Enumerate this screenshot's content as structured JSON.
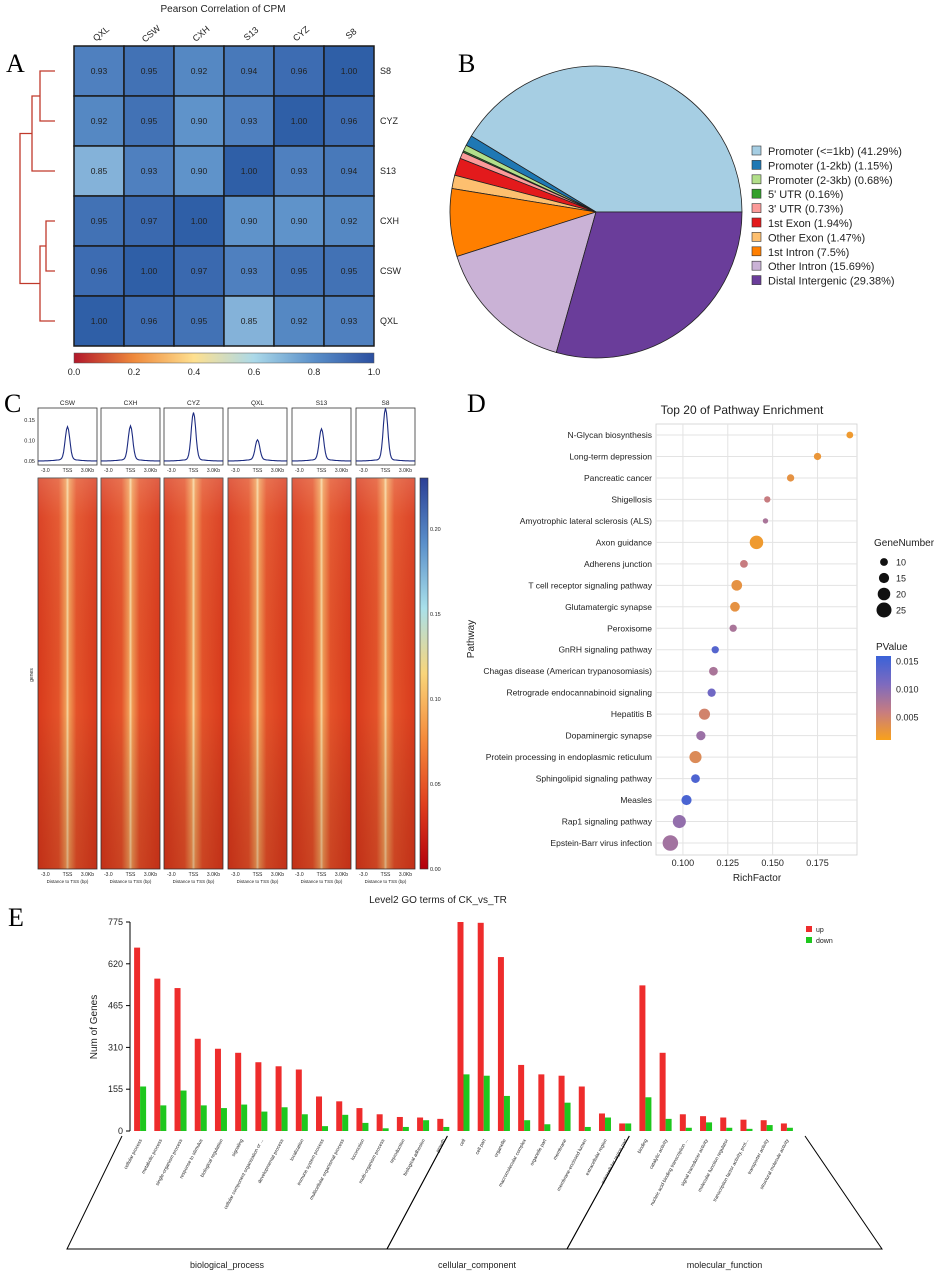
{
  "panel_letters": {
    "a": "A",
    "b": "B",
    "c": "C",
    "d": "D",
    "e": "E"
  },
  "chart_data": [
    {
      "panel": "A",
      "type": "heatmap",
      "title": "Pearson Correlation of CPM",
      "columns": [
        "QXL",
        "CSW",
        "CXH",
        "S13",
        "CYZ",
        "S8"
      ],
      "rows": [
        "S8",
        "CYZ",
        "S13",
        "CXH",
        "CSW",
        "QXL"
      ],
      "values": [
        [
          0.93,
          0.95,
          0.92,
          0.94,
          0.96,
          1.0
        ],
        [
          0.92,
          0.95,
          0.9,
          0.93,
          1.0,
          0.96
        ],
        [
          0.85,
          0.93,
          0.9,
          1.0,
          0.93,
          0.94
        ],
        [
          0.95,
          0.97,
          1.0,
          0.9,
          0.9,
          0.92
        ],
        [
          0.96,
          1.0,
          0.97,
          0.93,
          0.95,
          0.95
        ],
        [
          1.0,
          0.96,
          0.95,
          0.85,
          0.92,
          0.93
        ]
      ],
      "value_labels": [
        [
          "0.93",
          "0.95",
          "0.92",
          "0.94",
          "0.96",
          "1.00"
        ],
        [
          "0.92",
          "0.95",
          "0.90",
          "0.93",
          "1.00",
          "0.96"
        ],
        [
          "0.85",
          "0.93",
          "0.90",
          "1.00",
          "0.93",
          "0.94"
        ],
        [
          "0.95",
          "0.97",
          "1.00",
          "0.90",
          "0.90",
          "0.92"
        ],
        [
          "0.96",
          "1.00",
          "0.97",
          "0.93",
          "0.95",
          "0.95"
        ],
        [
          "1.00",
          "0.96",
          "0.95",
          "0.85",
          "0.92",
          "0.93"
        ]
      ],
      "colorbar": {
        "range": [
          0.0,
          1.0
        ],
        "ticks": [
          "0.0",
          "0.2",
          "0.4",
          "0.6",
          "0.8",
          "1.0"
        ],
        "colors": [
          "#b2182b",
          "#ef8a3c",
          "#fee090",
          "#abd9e9",
          "#5a8fc9",
          "#2b4fa0"
        ]
      },
      "dendrogram": "hierarchical clustering of rows (S8, CYZ, S13 | CXH, CSW, QXL)",
      "line_color": "#c0392b"
    },
    {
      "panel": "B",
      "type": "pie",
      "categories": [
        "Promoter (<=1kb)",
        "Promoter (1-2kb)",
        "Promoter (2-3kb)",
        "5' UTR",
        "3' UTR",
        "1st Exon",
        "Other Exon",
        "1st Intron",
        "Other Intron",
        "Distal Intergenic"
      ],
      "values": [
        41.29,
        1.15,
        0.68,
        0.16,
        0.73,
        1.94,
        1.47,
        7.5,
        15.69,
        29.38
      ],
      "legend_labels": [
        "Promoter (<=1kb) (41.29%)",
        "Promoter (1-2kb) (1.15%)",
        "Promoter (2-3kb) (0.68%)",
        "5' UTR (0.16%)",
        "3' UTR (0.73%)",
        "1st Exon (1.94%)",
        "Other Exon (1.47%)",
        "1st Intron (7.5%)",
        "Other Intron (15.69%)",
        "Distal Intergenic (29.38%)"
      ],
      "colors": [
        "#a6cee3",
        "#1f78b4",
        "#b2df8a",
        "#33a02c",
        "#fb9a99",
        "#e31a1c",
        "#fdbf6f",
        "#ff7f00",
        "#cab2d6",
        "#6a3d9a"
      ],
      "legend_placement": "right"
    },
    {
      "panel": "C",
      "type": "line",
      "description": "TSS profile plots with per-sample heatmaps",
      "samples": [
        "CSW",
        "CXH",
        "CYZ",
        "QXL",
        "S13",
        "S8"
      ],
      "peak_values": [
        0.13,
        0.132,
        0.165,
        0.098,
        0.125,
        0.175
      ],
      "baseline": 0.05,
      "profile_ylim": [
        0.04,
        0.18
      ],
      "profile_yticks": [
        "0.15",
        "0.10",
        "0.05"
      ],
      "x_ticks": [
        "-3.0",
        "TSS",
        "3.0Kb"
      ],
      "xlabel": "Distance to TSS (bp)",
      "heatmap_ylabel": "genes",
      "colorbar": {
        "range": [
          0.0,
          0.23
        ],
        "ticks": [
          "0.00",
          "0.05",
          "0.10",
          "0.15",
          "0.20"
        ],
        "colors": [
          "#b3000c",
          "#e0401e",
          "#f58b3c",
          "#f9d57a",
          "#a9e0ea",
          "#5a8fca",
          "#2b3f95"
        ]
      },
      "line_color": "#1b2a80"
    },
    {
      "panel": "D",
      "type": "scatter",
      "title": "Top 20 of Pathway Enrichment",
      "xlabel": "RichFactor",
      "ylabel": "Pathway",
      "xlim": [
        0.085,
        0.197
      ],
      "xticks": [
        "0.100",
        "0.125",
        "0.150",
        "0.175"
      ],
      "pathways": [
        "N-Glycan biosynthesis",
        "Long-term depression",
        "Pancreatic cancer",
        "Shigellosis",
        "Amyotrophic lateral sclerosis (ALS)",
        "Axon guidance",
        "Adherens junction",
        "T cell receptor signaling pathway",
        "Glutamatergic synapse",
        "Peroxisome",
        "GnRH signaling pathway",
        "Chagas disease (American trypanosomiasis)",
        "Retrograde endocannabinoid signaling",
        "Hepatitis B",
        "Dopaminergic synapse",
        "Protein processing in endoplasmic reticulum",
        "Sphingolipid signaling pathway",
        "Measles",
        "Rap1 signaling pathway",
        "Epstein-Barr virus infection"
      ],
      "rich_factor": [
        0.193,
        0.175,
        0.16,
        0.147,
        0.146,
        0.141,
        0.134,
        0.13,
        0.129,
        0.128,
        0.118,
        0.117,
        0.116,
        0.112,
        0.11,
        0.107,
        0.107,
        0.102,
        0.098,
        0.093
      ],
      "gene_number": [
        8,
        9,
        9,
        7,
        5,
        22,
        10,
        16,
        14,
        9,
        9,
        12,
        11,
        17,
        13,
        19,
        12,
        15,
        21,
        26
      ],
      "pvalue": [
        0.002,
        0.0025,
        0.003,
        0.006,
        0.008,
        0.002,
        0.006,
        0.003,
        0.003,
        0.008,
        0.014,
        0.008,
        0.012,
        0.005,
        0.009,
        0.004,
        0.0145,
        0.0148,
        0.0095,
        0.0085
      ],
      "size_legend": {
        "title": "GeneNumber",
        "labels": [
          "10",
          "15",
          "20",
          "25"
        ],
        "values": [
          10,
          15,
          20,
          25
        ]
      },
      "color_legend": {
        "title": "PValue",
        "labels": [
          "0.015",
          "0.010",
          "0.005"
        ],
        "range": [
          0.001,
          0.016
        ],
        "colors": [
          "#f9a11b",
          "#c77c80",
          "#7d6abf",
          "#3a62d8"
        ]
      },
      "grid": true
    },
    {
      "panel": "E",
      "type": "bar",
      "title": "Level2 GO terms of CK_vs_TR",
      "ylabel": "Num of Genes",
      "ylim": [
        0,
        775
      ],
      "yticks": [
        "0",
        "155",
        "310",
        "465",
        "620",
        "775"
      ],
      "categories": [
        "cellular process",
        "metabolic process",
        "single-organism process",
        "response to stimulus",
        "biological regulation",
        "signaling",
        "cellular component organization or ...",
        "developmental process",
        "localization",
        "immune system process",
        "multicellular organismal process",
        "locomotion",
        "multi-organism process",
        "reproduction",
        "biological adhesion",
        "growth",
        "cell",
        "cell part",
        "organelle",
        "macromolecular complex",
        "organelle part",
        "membrane",
        "membrane-enclosed lumen",
        "extracellular region",
        "extracellular region part",
        "binding",
        "catalytic activity",
        "nucleic acid binding transcription ...",
        "signal transducer activity",
        "molecular function regulator",
        "transcription factor activity, prot...",
        "transporter activity",
        "structural molecule activity"
      ],
      "series": [
        {
          "name": "up",
          "color": "#ee2c2c",
          "values": [
            680,
            565,
            530,
            342,
            305,
            290,
            255,
            240,
            228,
            128,
            110,
            85,
            62,
            52,
            50,
            45,
            775,
            772,
            645,
            245,
            210,
            205,
            165,
            65,
            28,
            540,
            290,
            62,
            55,
            50,
            42,
            40,
            28
          ]
        },
        {
          "name": "down",
          "color": "#1ec71e",
          "values": [
            165,
            95,
            150,
            95,
            85,
            98,
            72,
            88,
            62,
            18,
            60,
            30,
            10,
            15,
            40,
            15,
            210,
            205,
            130,
            40,
            25,
            105,
            15,
            50,
            28,
            125,
            45,
            12,
            32,
            12,
            8,
            22,
            12
          ]
        }
      ],
      "groups": [
        {
          "name": "biological_process",
          "from": 0,
          "to": 15
        },
        {
          "name": "cellular_component",
          "from": 16,
          "to": 24
        },
        {
          "name": "molecular_function",
          "from": 25,
          "to": 32
        }
      ],
      "legend_placement": "top-right"
    }
  ]
}
